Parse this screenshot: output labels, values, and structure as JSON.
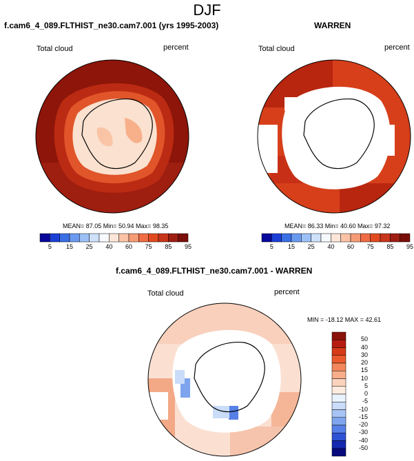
{
  "main_title": "DJF",
  "panels": [
    {
      "title": "f.cam6_4_089.FLTHIST_ne30.cam7.001 (yrs 1995-2003)",
      "left_label": "Total cloud",
      "right_label": "percent",
      "stats": "MEAN=  87.05   Min=  50.94   Max=  98.35"
    },
    {
      "title": "WARREN",
      "left_label": "Total cloud",
      "right_label": "percent",
      "stats": "MEAN=  86.33   Min=  40.60   Max=  97.32"
    },
    {
      "title": "f.cam6_4_089.FLTHIST_ne30.cam7.001 - WARREN",
      "left_label": "Total cloud",
      "right_label": "percent",
      "stats": "MIN = -18.12  MAX =  42.61"
    }
  ],
  "colorbar_abs": {
    "labels": [
      "5",
      "15",
      "25",
      "40",
      "60",
      "75",
      "85",
      "95"
    ],
    "colors": [
      "#08089a",
      "#1c3fd6",
      "#3a6fe6",
      "#6a9af0",
      "#9cc0f6",
      "#cfe0fa",
      "#f6f9fe",
      "#fde6d8",
      "#fbc3a6",
      "#f59b76",
      "#ef6c44",
      "#e14a20",
      "#c7361a",
      "#9e1e12",
      "#7a0e08"
    ]
  },
  "colorbar_diff": {
    "labels": [
      "50",
      "40",
      "30",
      "20",
      "15",
      "10",
      "5",
      "0",
      "-5",
      "-10",
      "-15",
      "-20",
      "-30",
      "-40",
      "-50"
    ],
    "colors": [
      "#8a1208",
      "#b71c10",
      "#d63a18",
      "#ea5a2c",
      "#f3865a",
      "#f8ae8a",
      "#fbd2bc",
      "#fdebe0",
      "#eaf2fd",
      "#c9dcf8",
      "#a8c4f4",
      "#7fa5ee",
      "#5680e6",
      "#2e52d4",
      "#1428b0",
      "#060a7a"
    ]
  }
}
